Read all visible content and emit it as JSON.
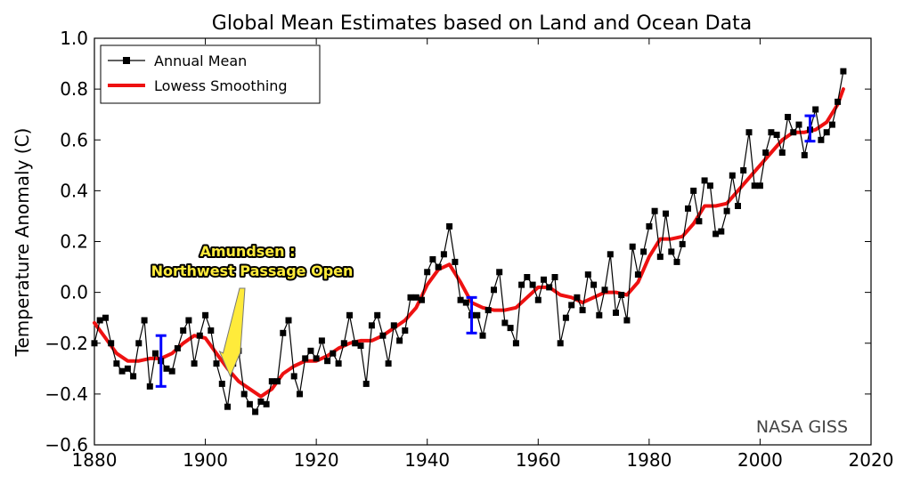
{
  "chart_data": {
    "type": "line",
    "title": "Global Mean Estimates based on Land and Ocean Data",
    "xlabel": "",
    "ylabel": "Temperature Anomaly (C)",
    "xlim": [
      1880,
      2020
    ],
    "ylim": [
      -0.6,
      1.0
    ],
    "xticks": [
      1880,
      1900,
      1920,
      1940,
      1960,
      1980,
      2000,
      2020
    ],
    "yticks": [
      -0.6,
      -0.4,
      -0.2,
      0.0,
      0.2,
      0.4,
      0.6,
      0.8,
      1.0
    ],
    "ytick_labels": [
      "−0.6",
      "−0.4",
      "−0.2",
      "0.0",
      "0.2",
      "0.4",
      "0.6",
      "0.8",
      "1.0"
    ],
    "grid": false,
    "legend_position": "top-left",
    "series": [
      {
        "name": "Annual Mean",
        "style": "black-line-square-markers",
        "color": "#000000",
        "x": [
          1880,
          1881,
          1882,
          1883,
          1884,
          1885,
          1886,
          1887,
          1888,
          1889,
          1890,
          1891,
          1892,
          1893,
          1894,
          1895,
          1896,
          1897,
          1898,
          1899,
          1900,
          1901,
          1902,
          1903,
          1904,
          1905,
          1906,
          1907,
          1908,
          1909,
          1910,
          1911,
          1912,
          1913,
          1914,
          1915,
          1916,
          1917,
          1918,
          1919,
          1920,
          1921,
          1922,
          1923,
          1924,
          1925,
          1926,
          1927,
          1928,
          1929,
          1930,
          1931,
          1932,
          1933,
          1934,
          1935,
          1936,
          1937,
          1938,
          1939,
          1940,
          1941,
          1942,
          1943,
          1944,
          1945,
          1946,
          1947,
          1948,
          1949,
          1950,
          1951,
          1952,
          1953,
          1954,
          1955,
          1956,
          1957,
          1958,
          1959,
          1960,
          1961,
          1962,
          1963,
          1964,
          1965,
          1966,
          1967,
          1968,
          1969,
          1970,
          1971,
          1972,
          1973,
          1974,
          1975,
          1976,
          1977,
          1978,
          1979,
          1980,
          1981,
          1982,
          1983,
          1984,
          1985,
          1986,
          1987,
          1988,
          1989,
          1990,
          1991,
          1992,
          1993,
          1994,
          1995,
          1996,
          1997,
          1998,
          1999,
          2000,
          2001,
          2002,
          2003,
          2004,
          2005,
          2006,
          2007,
          2008,
          2009,
          2010,
          2011,
          2012,
          2013,
          2014,
          2015
        ],
        "y": [
          -0.2,
          -0.11,
          -0.1,
          -0.2,
          -0.28,
          -0.31,
          -0.3,
          -0.33,
          -0.2,
          -0.11,
          -0.37,
          -0.24,
          -0.27,
          -0.3,
          -0.31,
          -0.22,
          -0.15,
          -0.11,
          -0.28,
          -0.17,
          -0.09,
          -0.15,
          -0.28,
          -0.36,
          -0.45,
          -0.28,
          -0.23,
          -0.4,
          -0.44,
          -0.47,
          -0.43,
          -0.44,
          -0.35,
          -0.35,
          -0.16,
          -0.11,
          -0.33,
          -0.4,
          -0.26,
          -0.23,
          -0.26,
          -0.19,
          -0.27,
          -0.24,
          -0.28,
          -0.2,
          -0.09,
          -0.2,
          -0.21,
          -0.36,
          -0.13,
          -0.09,
          -0.17,
          -0.28,
          -0.13,
          -0.19,
          -0.15,
          -0.02,
          -0.02,
          -0.03,
          0.08,
          0.13,
          0.1,
          0.15,
          0.26,
          0.12,
          -0.03,
          -0.04,
          -0.09,
          -0.09,
          -0.17,
          -0.07,
          0.01,
          0.08,
          -0.12,
          -0.14,
          -0.2,
          0.03,
          0.06,
          0.03,
          -0.03,
          0.05,
          0.02,
          0.06,
          -0.2,
          -0.1,
          -0.05,
          -0.02,
          -0.07,
          0.07,
          0.03,
          -0.09,
          0.01,
          0.15,
          -0.08,
          -0.01,
          -0.11,
          0.18,
          0.07,
          0.16,
          0.26,
          0.32,
          0.14,
          0.31,
          0.16,
          0.12,
          0.19,
          0.33,
          0.4,
          0.28,
          0.44,
          0.42,
          0.23,
          0.24,
          0.32,
          0.46,
          0.34,
          0.48,
          0.63,
          0.42,
          0.42,
          0.55,
          0.63,
          0.62,
          0.55,
          0.69,
          0.63,
          0.66,
          0.54,
          0.64,
          0.72,
          0.6,
          0.63,
          0.66,
          0.75,
          0.87
        ]
      },
      {
        "name": "Lowess Smoothing",
        "style": "red-thick-line",
        "color": "#ee1111",
        "x": [
          1880,
          1882,
          1884,
          1886,
          1888,
          1890,
          1892,
          1894,
          1896,
          1898,
          1900,
          1902,
          1904,
          1906,
          1908,
          1910,
          1912,
          1914,
          1916,
          1918,
          1920,
          1922,
          1924,
          1926,
          1928,
          1930,
          1932,
          1934,
          1936,
          1938,
          1940,
          1942,
          1944,
          1946,
          1948,
          1950,
          1952,
          1954,
          1956,
          1958,
          1960,
          1962,
          1964,
          1966,
          1968,
          1970,
          1972,
          1974,
          1976,
          1978,
          1980,
          1982,
          1984,
          1986,
          1988,
          1990,
          1992,
          1994,
          1996,
          1998,
          2000,
          2002,
          2004,
          2006,
          2008,
          2010,
          2012,
          2014,
          2015
        ],
        "y": [
          -0.12,
          -0.18,
          -0.24,
          -0.27,
          -0.27,
          -0.26,
          -0.26,
          -0.24,
          -0.2,
          -0.17,
          -0.18,
          -0.24,
          -0.3,
          -0.35,
          -0.38,
          -0.41,
          -0.38,
          -0.32,
          -0.29,
          -0.27,
          -0.27,
          -0.25,
          -0.22,
          -0.2,
          -0.19,
          -0.19,
          -0.17,
          -0.14,
          -0.11,
          -0.06,
          0.03,
          0.09,
          0.11,
          0.04,
          -0.04,
          -0.06,
          -0.07,
          -0.07,
          -0.06,
          -0.02,
          0.02,
          0.02,
          -0.01,
          -0.02,
          -0.04,
          -0.02,
          0.0,
          0.0,
          -0.01,
          0.04,
          0.14,
          0.21,
          0.21,
          0.22,
          0.27,
          0.34,
          0.34,
          0.35,
          0.4,
          0.45,
          0.5,
          0.55,
          0.6,
          0.63,
          0.63,
          0.64,
          0.67,
          0.74,
          0.8
        ]
      }
    ],
    "error_bars": [
      {
        "x": 1892,
        "y": -0.27,
        "low": -0.37,
        "high": -0.17,
        "color": "#0000ff"
      },
      {
        "x": 1948,
        "y": -0.09,
        "low": -0.16,
        "high": -0.02,
        "color": "#0000ff"
      },
      {
        "x": 2009,
        "y": 0.645,
        "low": 0.595,
        "high": 0.695,
        "color": "#0000ff"
      }
    ],
    "annotation": {
      "lines": [
        "Amundsen :",
        "Northwest Passage Open"
      ],
      "target": {
        "x": 1904,
        "y": -0.33
      },
      "color": "#ffeb3b"
    },
    "credit": "NASA GISS"
  }
}
